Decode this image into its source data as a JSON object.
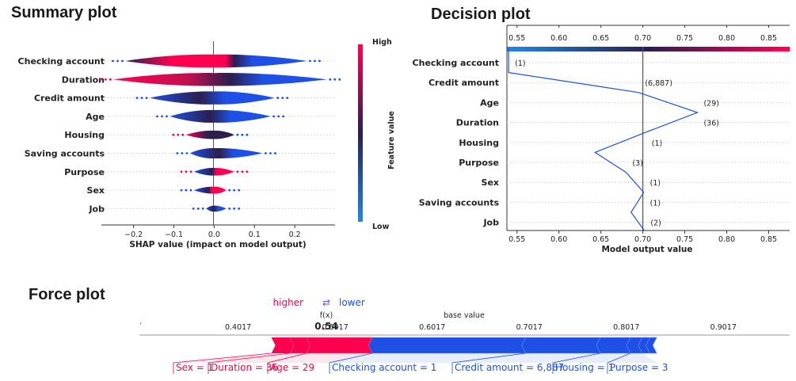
{
  "sections": {
    "summary": "Summary plot",
    "decision": "Decision plot",
    "force": "Force plot"
  },
  "colors": {
    "red": "#ff0051",
    "blue": "#1e50e6",
    "dark": "#2a1f4f"
  },
  "chart_data": [
    {
      "type": "scatter",
      "name": "summary",
      "features": [
        "Checking account",
        "Duration",
        "Credit amount",
        "Age",
        "Housing",
        "Saving accounts",
        "Purpose",
        "Sex",
        "Job"
      ],
      "x_ticks": [
        "−0.2",
        "−0.1",
        "0.0",
        "0.1",
        "0.2"
      ],
      "x_tick_values": [
        -0.2,
        -0.1,
        0.0,
        0.1,
        0.2
      ],
      "xlim": [
        -0.28,
        0.3
      ],
      "xlabel": "SHAP value (impact on model output)",
      "colorbar": {
        "high": "High",
        "low": "Low",
        "label": "Feature value"
      },
      "spreads": [
        {
          "min": -0.22,
          "max": 0.23
        },
        {
          "min": -0.25,
          "max": 0.28
        },
        {
          "min": -0.16,
          "max": 0.15
        },
        {
          "min": -0.11,
          "max": 0.14
        },
        {
          "min": -0.07,
          "max": 0.05
        },
        {
          "min": -0.06,
          "max": 0.12
        },
        {
          "min": -0.05,
          "max": 0.05
        },
        {
          "min": -0.05,
          "max": 0.03
        },
        {
          "min": -0.02,
          "max": 0.03
        }
      ]
    },
    {
      "type": "line",
      "name": "decision",
      "features": [
        "Checking account",
        "Credit amount",
        "Age",
        "Duration",
        "Housing",
        "Purpose",
        "Sex",
        "Saving accounts",
        "Job"
      ],
      "feature_values": [
        "(1)",
        "(6,887)",
        "(29)",
        "(36)",
        "(1)",
        "(3)",
        "(1)",
        "(1)",
        "(2)"
      ],
      "x_ticks": [
        "0.55",
        "0.60",
        "0.65",
        "0.70",
        "0.75",
        "0.80",
        "0.85"
      ],
      "x_tick_values": [
        0.55,
        0.6,
        0.65,
        0.7,
        0.75,
        0.8,
        0.85
      ],
      "xlim": [
        0.538,
        0.875
      ],
      "base_value": 0.7,
      "path_bottom_to_top": [
        0.7017,
        0.686,
        0.701,
        0.68,
        0.643,
        0.703,
        0.765,
        0.695,
        0.54
      ],
      "xlabel": "Model output value"
    },
    {
      "type": "bar",
      "name": "force",
      "legend": {
        "higher": "higher",
        "arrow": "⇄",
        "lower": "lower"
      },
      "fx_label": "f(x)",
      "fx_value": "0.54",
      "fx_numeric": 0.54,
      "base_label": "base value",
      "base_numeric": 0.7017,
      "x_ticks": [
        "0.4017",
        "0.5017",
        "0.6017",
        "0.7017",
        "0.8017",
        "0.9017"
      ],
      "x_tick_values": [
        0.4017,
        0.5017,
        0.6017,
        0.7017,
        0.8017,
        0.9017
      ],
      "xlim": [
        0.3,
        0.97
      ],
      "red_segments": [
        {
          "label": "Sex = 1",
          "from": 0.436,
          "to": 0.455
        },
        {
          "label": "Duration = 36",
          "from": 0.455,
          "to": 0.472
        },
        {
          "label": "Age = 29",
          "from": 0.472,
          "to": 0.54
        }
      ],
      "blue_segments": [
        {
          "label": "Checking account = 1",
          "from": 0.54,
          "to": 0.698
        },
        {
          "label": "Credit amount = 6,887",
          "from": 0.698,
          "to": 0.775
        },
        {
          "label": "Housing = 1",
          "from": 0.775,
          "to": 0.806
        },
        {
          "label": "Purpose = 3",
          "from": 0.806,
          "to": 0.818
        },
        {
          "label": "",
          "from": 0.818,
          "to": 0.826
        },
        {
          "label": "",
          "from": 0.826,
          "to": 0.833
        }
      ],
      "label_positions": [
        222,
        266,
        341,
        419,
        574,
        701,
        770
      ]
    }
  ]
}
